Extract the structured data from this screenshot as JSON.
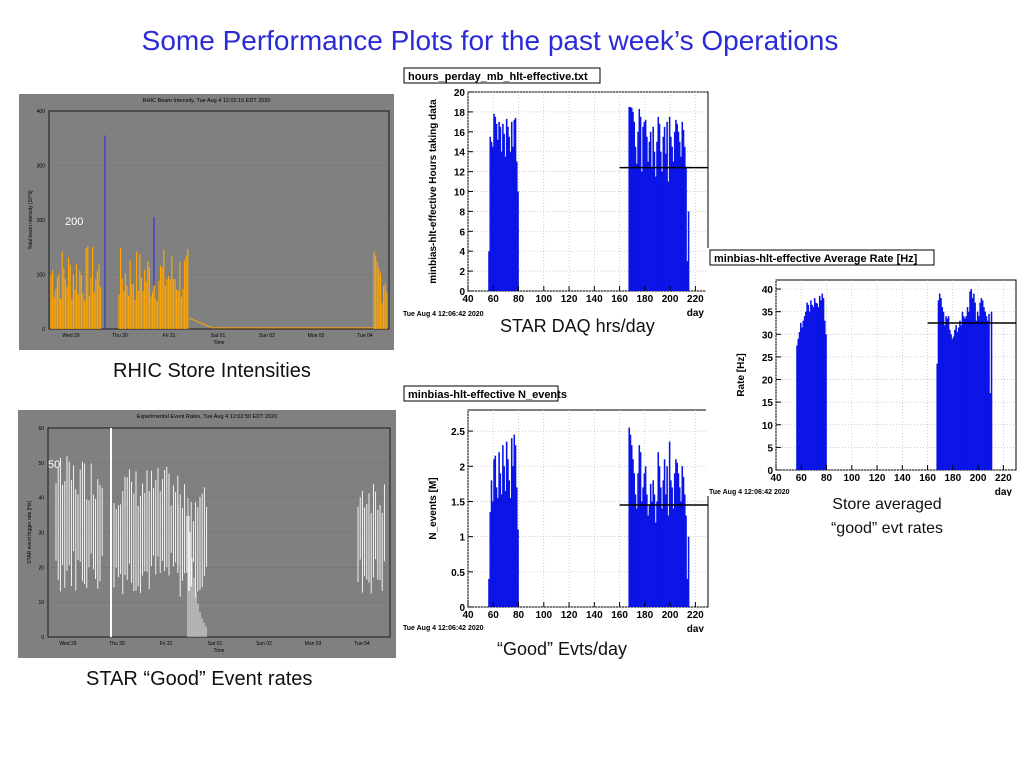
{
  "slide": {
    "title": "Some Performance Plots for the past week’s Operations",
    "captions": {
      "rhic": "RHIC Store Intensities",
      "star_rates": "STAR “Good” Event rates",
      "daq": "STAR DAQ hrs/day",
      "good_evts": "“Good” Evts/day",
      "store_avg_1": "Store averaged",
      "store_avg_2": "“good” evt rates"
    }
  },
  "colors": {
    "title": "#2b2bd6",
    "bar": "#0a14e6",
    "panel_bg": "#808080",
    "orange": "#ffa500",
    "white_trace": "#ffffff"
  },
  "chart_data": [
    {
      "id": "rhic",
      "type": "area",
      "title": "RHIC Beam Intensity, Tue Aug  4 12:02:15 EDT 2020",
      "xlabel": "Time",
      "ylabel": "Total beam intensity [10^9]",
      "annotation": "200",
      "ylim": [
        0,
        400
      ],
      "yticks": [
        "0",
        "100",
        "200",
        "300",
        "400"
      ],
      "xticks": [
        "Wed 29",
        "Thu 30",
        "Fri 31",
        "Sat 01",
        "Sun 02",
        "Mon 03",
        "Tue 04"
      ],
      "spike_value": 355
    },
    {
      "id": "star_rates",
      "type": "line",
      "title": "Experimental Event Rates, Tue Aug  4 12:02:50 EDT 2020",
      "xlabel": "Time",
      "ylabel": "STAR event trigger rate [Hz]",
      "annotation": "50",
      "ylim": [
        0,
        60
      ],
      "yticks": [
        "0",
        "10",
        "20",
        "30",
        "40",
        "50",
        "60"
      ],
      "xticks": [
        "Wed 29",
        "Thu 30",
        "Fri 31",
        "Sat 01",
        "Sun 02",
        "Mon 03",
        "Tue 04"
      ],
      "spike_value": 60
    },
    {
      "id": "hours",
      "type": "bar",
      "file_label": "hours_perday_mb_hlt-effective.txt",
      "ylabel": "minbias-hlt-effective Hours taking data",
      "xlabel": "day",
      "timestamp": "Tue Aug  4 12:06:42 2020",
      "xlim": [
        40,
        230
      ],
      "ylim": [
        0,
        20
      ],
      "xticks": [
        40,
        60,
        80,
        100,
        120,
        140,
        160,
        180,
        200,
        220
      ],
      "yticks": [
        0,
        2,
        4,
        6,
        8,
        10,
        12,
        14,
        16,
        18,
        20
      ],
      "reference_line": {
        "from": 160,
        "to": 230,
        "y": 12.4
      },
      "x": [
        56,
        57,
        58,
        59,
        60,
        61,
        62,
        63,
        64,
        65,
        66,
        67,
        68,
        69,
        70,
        71,
        72,
        73,
        74,
        75,
        76,
        77,
        78,
        79,
        167,
        168,
        169,
        170,
        171,
        172,
        173,
        174,
        175,
        176,
        177,
        178,
        179,
        180,
        181,
        182,
        183,
        184,
        185,
        186,
        187,
        188,
        189,
        190,
        191,
        192,
        193,
        194,
        195,
        196,
        197,
        198,
        199,
        200,
        201,
        202,
        203,
        204,
        205,
        206,
        207,
        208,
        209,
        210,
        211,
        212,
        213,
        214,
        215,
        216,
        217,
        218
      ],
      "values": [
        4,
        15.5,
        15.0,
        14.5,
        17.8,
        17.5,
        16.8,
        15.2,
        17.0,
        16.5,
        14.0,
        16.8,
        15.8,
        13.5,
        17.3,
        16.5,
        15.5,
        14.0,
        17.0,
        14.5,
        17.2,
        17.4,
        13.0,
        10.0,
        18.5,
        18.5,
        18.4,
        18.0,
        17.0,
        14.5,
        12.8,
        16.0,
        18.3,
        17.5,
        12.0,
        16.5,
        17.0,
        17.2,
        15.5,
        13.0,
        15.0,
        16.0,
        12.4,
        16.5,
        14.0,
        11.5,
        15.0,
        17.5,
        16.8,
        14.0,
        12.0,
        15.5,
        16.5,
        13.8,
        17.0,
        11.0,
        17.5,
        15.5,
        14.5,
        13.0,
        16.0,
        17.2,
        16.8,
        16.0,
        15.0,
        13.5,
        17.0,
        16.2,
        14.5,
        12.5,
        3.0,
        8.0,
        0,
        0,
        0,
        0
      ]
    },
    {
      "id": "nevents",
      "type": "bar",
      "file_label": "minbias-hlt-effective N_events",
      "ylabel": "N_events [M]",
      "xlabel": "day",
      "timestamp": "Tue Aug  4 12:06:42 2020",
      "xlim": [
        40,
        230
      ],
      "ylim": [
        0,
        2.8
      ],
      "xticks": [
        40,
        60,
        80,
        100,
        120,
        140,
        160,
        180,
        200,
        220
      ],
      "yticks": [
        0,
        0.5,
        1,
        1.5,
        2,
        2.5
      ],
      "reference_line": {
        "from": 160,
        "to": 230,
        "y": 1.45
      },
      "x": [
        56,
        57,
        58,
        59,
        60,
        61,
        62,
        63,
        64,
        65,
        66,
        67,
        68,
        69,
        70,
        71,
        72,
        73,
        74,
        75,
        76,
        77,
        78,
        79,
        167,
        168,
        169,
        170,
        171,
        172,
        173,
        174,
        175,
        176,
        177,
        178,
        179,
        180,
        181,
        182,
        183,
        184,
        185,
        186,
        187,
        188,
        189,
        190,
        191,
        192,
        193,
        194,
        195,
        196,
        197,
        198,
        199,
        200,
        201,
        202,
        203,
        204,
        205,
        206,
        207,
        208,
        209,
        210,
        211,
        212,
        213,
        214,
        215,
        216,
        217,
        218
      ],
      "values": [
        0.4,
        1.35,
        1.8,
        1.5,
        2.1,
        2.15,
        1.7,
        1.55,
        2.2,
        1.9,
        1.6,
        2.3,
        2.0,
        1.65,
        2.35,
        2.1,
        1.8,
        1.55,
        2.4,
        2.0,
        2.45,
        2.3,
        1.7,
        1.1,
        2.55,
        2.45,
        2.3,
        2.1,
        1.9,
        1.6,
        1.4,
        1.9,
        2.3,
        2.2,
        1.5,
        1.7,
        1.9,
        2.0,
        1.6,
        1.3,
        1.45,
        1.75,
        1.5,
        1.8,
        1.6,
        1.2,
        1.5,
        2.2,
        2.0,
        1.7,
        1.4,
        1.8,
        2.1,
        1.6,
        2.0,
        1.3,
        2.35,
        1.8,
        1.7,
        1.4,
        1.9,
        2.1,
        2.05,
        1.9,
        1.7,
        1.5,
        2.0,
        1.85,
        1.6,
        1.3,
        0.4,
        1.0,
        0,
        0,
        0,
        0
      ]
    },
    {
      "id": "rate",
      "type": "bar",
      "file_label": "minbias-hlt-effective Average Rate [Hz]",
      "ylabel": "Rate [Hz]",
      "xlabel": "day",
      "timestamp": "Tue Aug  4 12:06:42 2020",
      "xlim": [
        40,
        230
      ],
      "ylim": [
        0,
        42
      ],
      "xticks": [
        40,
        60,
        80,
        100,
        120,
        140,
        160,
        180,
        200,
        220
      ],
      "yticks": [
        0,
        5,
        10,
        15,
        20,
        25,
        30,
        35,
        40
      ],
      "reference_line": {
        "from": 160,
        "to": 230,
        "y": 32.5
      },
      "x": [
        56,
        57,
        58,
        59,
        60,
        61,
        62,
        63,
        64,
        65,
        66,
        67,
        68,
        69,
        70,
        71,
        72,
        73,
        74,
        75,
        76,
        77,
        78,
        79,
        167,
        168,
        169,
        170,
        171,
        172,
        173,
        174,
        175,
        176,
        177,
        178,
        179,
        180,
        181,
        182,
        183,
        184,
        185,
        186,
        187,
        188,
        189,
        190,
        191,
        192,
        193,
        194,
        195,
        196,
        197,
        198,
        199,
        200,
        201,
        202,
        203,
        204,
        205,
        206,
        207,
        208,
        209,
        210,
        211,
        212,
        213,
        214,
        215,
        216,
        217,
        218
      ],
      "values": [
        27.5,
        29.0,
        30.5,
        32.5,
        31.5,
        33.0,
        34.0,
        35.0,
        37.0,
        36.5,
        35.0,
        37.5,
        36.5,
        36.0,
        38.0,
        37.0,
        36.8,
        36.0,
        38.5,
        37.5,
        39.0,
        38.0,
        33.0,
        30.0,
        23.5,
        37.5,
        39.0,
        38.0,
        36.0,
        35.0,
        32.0,
        34.0,
        33.5,
        34.0,
        31.0,
        30.0,
        29.0,
        29.5,
        31.0,
        32.0,
        30.5,
        31.5,
        33.0,
        32.0,
        35.0,
        34.0,
        33.5,
        34.0,
        36.0,
        35.0,
        39.5,
        40.0,
        38.0,
        39.0,
        37.0,
        33.0,
        35.0,
        34.0,
        37.0,
        38.0,
        37.5,
        36.0,
        35.0,
        34.0,
        33.0,
        34.5,
        17.0,
        35.0,
        0,
        0,
        0,
        0,
        0,
        0,
        0,
        0
      ]
    }
  ]
}
